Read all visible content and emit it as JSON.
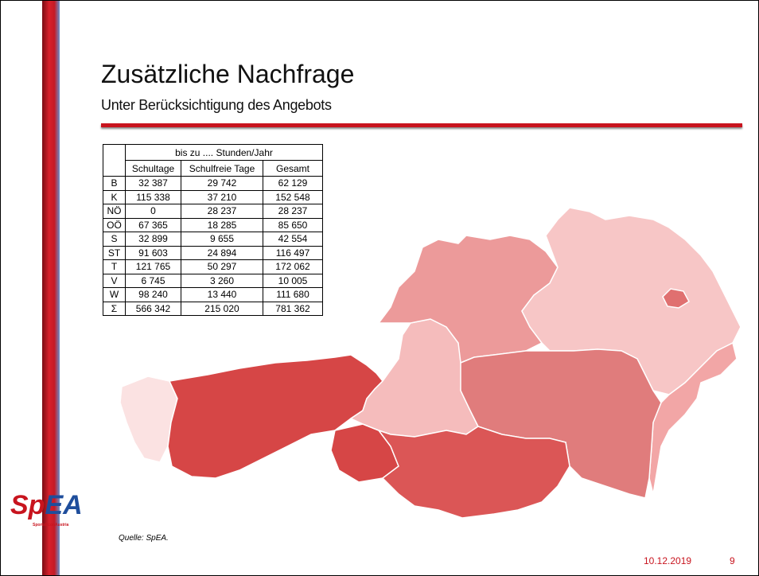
{
  "header": {
    "title": "Zusätzliche Nachfrage",
    "subtitle": "Unter Berücksichtigung des Angebots"
  },
  "table": {
    "group_header": "bis zu .... Stunden/Jahr",
    "columns": [
      "Schultage",
      "Schulfreie Tage",
      "Gesamt"
    ],
    "rows": [
      [
        "B",
        "32 387",
        "29 742",
        "62 129"
      ],
      [
        "K",
        "115 338",
        "37 210",
        "152 548"
      ],
      [
        "NÖ",
        "0",
        "28 237",
        "28 237"
      ],
      [
        "OÖ",
        "67 365",
        "18 285",
        "85 650"
      ],
      [
        "S",
        "32 899",
        "9 655",
        "42 554"
      ],
      [
        "ST",
        "91 603",
        "24 894",
        "116 497"
      ],
      [
        "T",
        "121 765",
        "50 297",
        "172 062"
      ],
      [
        "V",
        "6 745",
        "3 260",
        "10 005"
      ],
      [
        "W",
        "98 240",
        "13 440",
        "111 680"
      ],
      [
        "Σ",
        "566 342",
        "215 020",
        "781 362"
      ]
    ]
  },
  "logo": {
    "parts": [
      "Sp",
      "EA"
    ],
    "tagline": "SportsEconAustria"
  },
  "footer": {
    "source": "Quelle: SpEA.",
    "date": "10.12.2019",
    "page": "9"
  }
}
